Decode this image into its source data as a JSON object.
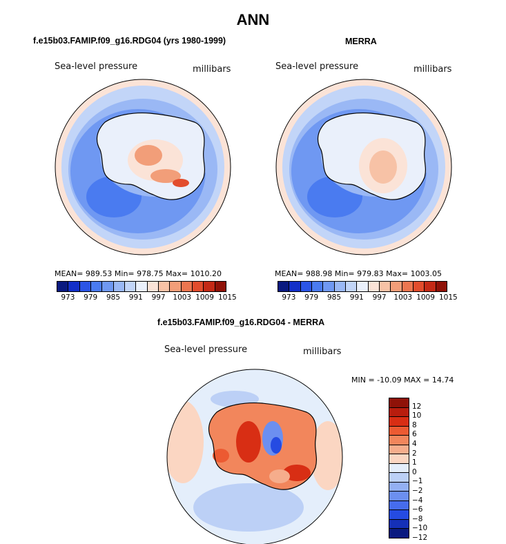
{
  "page": {
    "title": "ANN",
    "left_subtitle": "f.e15b03.FAMIP.f09_g16.RDG04 (yrs 1980-1999)",
    "right_subtitle": "MERRA",
    "diff_subtitle": "f.e15b03.FAMIP.f09_g16.RDG04 - MERRA"
  },
  "panels": {
    "model": {
      "variable": "Sea-level pressure",
      "units": "millibars",
      "stats": "MEAN=  989.53   Min=  978.75   Max=  1010.20"
    },
    "obs": {
      "variable": "Sea-level pressure",
      "units": "millibars",
      "stats": "MEAN=  988.98   Min=  979.83   Max=  1003.05"
    },
    "diff": {
      "variable": "Sea-level pressure",
      "units": "millibars",
      "minmax": "MIN = -10.09 MAX =  14.74"
    }
  },
  "colorbar_main": {
    "colors": [
      "#0a1a80",
      "#1330c8",
      "#2b55e6",
      "#4a7bf0",
      "#6f98f2",
      "#9ab8f5",
      "#c2d5f8",
      "#eaf0fb",
      "#fbe3d7",
      "#f7c2a6",
      "#f29e79",
      "#ec7650",
      "#e24d2d",
      "#c42a16",
      "#8f1208"
    ],
    "labels": [
      "973",
      "979",
      "985",
      "991",
      "997",
      "1003",
      "1009",
      "1015"
    ]
  },
  "colorbar_diff": {
    "colors": [
      "#8f1208",
      "#b81d0e",
      "#d82e14",
      "#ec5a32",
      "#f2865c",
      "#f6ad8c",
      "#fbd6c2",
      "#e4eefb",
      "#bcd0f6",
      "#93b0f3",
      "#6c8ff0",
      "#466ced",
      "#254be2",
      "#1530b8",
      "#0a1a80"
    ],
    "labels": [
      "12",
      "10",
      "8",
      "6",
      "4",
      "2",
      "1",
      "0",
      "−1",
      "−2",
      "−4",
      "−6",
      "−8",
      "−10",
      "−12"
    ]
  }
}
